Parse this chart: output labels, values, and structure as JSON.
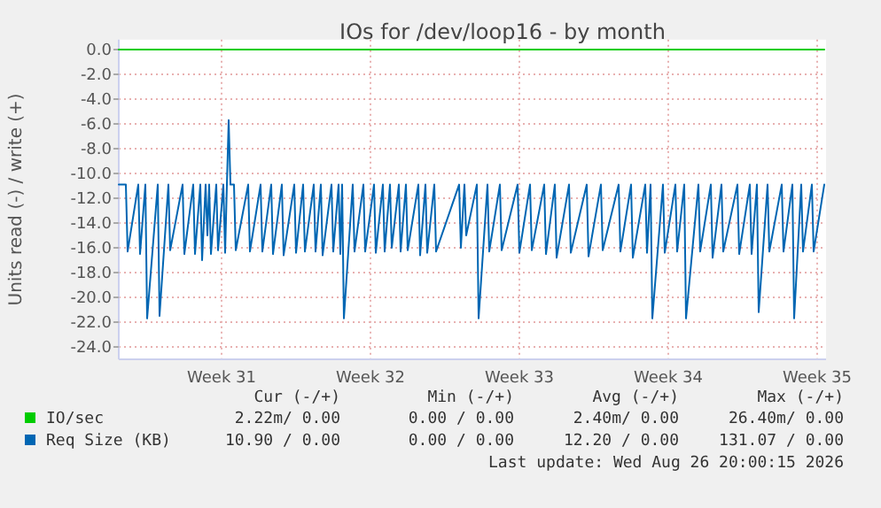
{
  "chart_data": {
    "type": "line",
    "title": "IOs for /dev/loop16 - by month",
    "ylabel": "Units read (-) / write (+)",
    "xlim": [
      "2026-07-22T04:00",
      "2026-08-24T10:00"
    ],
    "ylim": [
      -25,
      0.8
    ],
    "xticks": [
      {
        "value": "2026-07-27",
        "label": "Week 31"
      },
      {
        "value": "2026-08-03",
        "label": "Week 32"
      },
      {
        "value": "2026-08-10",
        "label": "Week 33"
      },
      {
        "value": "2026-08-17",
        "label": "Week 34"
      },
      {
        "value": "2026-08-24",
        "label": "Week 35"
      }
    ],
    "yticks": [
      {
        "value": 0,
        "label": "0.0"
      },
      {
        "value": -2,
        "label": "-2.0"
      },
      {
        "value": -4,
        "label": "-4.0"
      },
      {
        "value": -6,
        "label": "-6.0"
      },
      {
        "value": -8,
        "label": "-8.0"
      },
      {
        "value": -10,
        "label": "-10.0"
      },
      {
        "value": -12,
        "label": "-12.0"
      },
      {
        "value": -14,
        "label": "-14.0"
      },
      {
        "value": -16,
        "label": "-16.0"
      },
      {
        "value": -18,
        "label": "-18.0"
      },
      {
        "value": -20,
        "label": "-20.0"
      },
      {
        "value": -22,
        "label": "-22.0"
      },
      {
        "value": -24,
        "label": "-24.0"
      }
    ],
    "grid": true,
    "legend": "bottom",
    "series": [
      {
        "name": "IO/sec",
        "color": "#00cc00",
        "x": [
          "2026-07-22T04:00",
          "2026-08-24T08:00"
        ],
        "values": [
          0,
          0
        ]
      },
      {
        "name": "Req Size (KB)",
        "color": "#0066b3",
        "x": [
          "2026-07-22T04:00",
          "2026-07-22T12:00",
          "2026-07-22T14:00",
          "2026-07-23T02:00",
          "2026-07-23T04:00",
          "2026-07-23T10:00",
          "2026-07-23T12:00",
          "2026-07-24T00:00",
          "2026-07-24T02:00",
          "2026-07-24T12:00",
          "2026-07-24T14:00",
          "2026-07-25T04:00",
          "2026-07-25T06:00",
          "2026-07-25T16:00",
          "2026-07-25T18:00",
          "2026-07-26T00:00",
          "2026-07-26T02:00",
          "2026-07-26T06:00",
          "2026-07-26T08:00",
          "2026-07-26T10:00",
          "2026-07-26T12:00",
          "2026-07-26T18:00",
          "2026-07-26T20:00",
          "2026-07-27T02:00",
          "2026-07-27T04:00",
          "2026-07-27T06:00",
          "2026-07-27T08:00",
          "2026-07-27T10:00",
          "2026-07-27T14:00",
          "2026-07-27T16:00",
          "2026-07-28T06:00",
          "2026-07-28T08:00",
          "2026-07-28T20:00",
          "2026-07-28T22:00",
          "2026-07-29T08:00",
          "2026-07-29T10:00",
          "2026-07-29T20:00",
          "2026-07-29T22:00",
          "2026-07-30T10:00",
          "2026-07-30T12:00",
          "2026-07-30T20:00",
          "2026-07-30T22:00",
          "2026-07-31T08:00",
          "2026-07-31T10:00",
          "2026-07-31T16:00",
          "2026-07-31T18:00",
          "2026-08-01T04:00",
          "2026-08-01T06:00",
          "2026-08-01T12:00",
          "2026-08-01T14:00",
          "2026-08-01T16:00",
          "2026-08-01T18:00",
          "2026-08-02T04:00",
          "2026-08-02T06:00",
          "2026-08-02T16:00",
          "2026-08-02T18:00",
          "2026-08-03T04:00",
          "2026-08-03T06:00",
          "2026-08-03T14:00",
          "2026-08-03T16:00",
          "2026-08-03T22:00",
          "2026-08-04T00:00",
          "2026-08-04T08:00",
          "2026-08-04T10:00",
          "2026-08-04T16:00",
          "2026-08-04T18:00",
          "2026-08-05T06:00",
          "2026-08-05T08:00",
          "2026-08-05T14:00",
          "2026-08-05T16:00",
          "2026-08-06T00:00",
          "2026-08-06T02:00",
          "2026-08-07T04:00",
          "2026-08-07T06:00",
          "2026-08-07T10:00",
          "2026-08-07T12:00",
          "2026-08-08T00:00",
          "2026-08-08T02:00",
          "2026-08-08T12:00",
          "2026-08-08T14:00",
          "2026-08-09T02:00",
          "2026-08-09T04:00",
          "2026-08-09T22:00",
          "2026-08-10T00:00",
          "2026-08-10T12:00",
          "2026-08-10T14:00",
          "2026-08-11T04:00",
          "2026-08-11T06:00",
          "2026-08-11T16:00",
          "2026-08-11T18:00",
          "2026-08-12T08:00",
          "2026-08-12T10:00",
          "2026-08-13T04:00",
          "2026-08-13T06:00",
          "2026-08-13T20:00",
          "2026-08-13T22:00",
          "2026-08-14T16:00",
          "2026-08-14T18:00",
          "2026-08-15T06:00",
          "2026-08-15T08:00",
          "2026-08-15T22:00",
          "2026-08-16T00:00",
          "2026-08-16T04:00",
          "2026-08-16T06:00",
          "2026-08-16T18:00",
          "2026-08-16T20:00",
          "2026-08-17T08:00",
          "2026-08-17T10:00",
          "2026-08-17T18:00",
          "2026-08-17T20:00",
          "2026-08-18T10:00",
          "2026-08-18T12:00",
          "2026-08-19T00:00",
          "2026-08-19T02:00",
          "2026-08-19T12:00",
          "2026-08-19T14:00",
          "2026-08-20T06:00",
          "2026-08-20T08:00",
          "2026-08-20T20:00",
          "2026-08-20T22:00",
          "2026-08-21T04:00",
          "2026-08-21T06:00",
          "2026-08-21T16:00",
          "2026-08-21T18:00",
          "2026-08-22T08:00",
          "2026-08-22T10:00",
          "2026-08-22T20:00",
          "2026-08-22T22:00",
          "2026-08-23T06:00",
          "2026-08-23T08:00",
          "2026-08-23T18:00",
          "2026-08-23T20:00",
          "2026-08-24T08:00"
        ],
        "values": [
          -10.9,
          -10.9,
          -16.3,
          -10.9,
          -16.5,
          -10.9,
          -21.7,
          -10.9,
          -21.5,
          -10.9,
          -16.2,
          -10.9,
          -16.5,
          -10.9,
          -16.5,
          -10.9,
          -17.0,
          -10.9,
          -15.0,
          -10.9,
          -16.5,
          -10.9,
          -16.2,
          -10.9,
          -16.4,
          -10.9,
          -5.7,
          -10.9,
          -10.9,
          -16.2,
          -10.9,
          -16.3,
          -10.9,
          -16.3,
          -10.9,
          -16.5,
          -10.9,
          -16.6,
          -10.9,
          -16.4,
          -10.9,
          -16.3,
          -10.9,
          -16.3,
          -10.9,
          -16.6,
          -10.9,
          -16.3,
          -10.9,
          -16.5,
          -10.9,
          -21.7,
          -10.9,
          -16.3,
          -10.9,
          -16.3,
          -10.9,
          -16.4,
          -10.9,
          -16.3,
          -10.9,
          -16.0,
          -10.9,
          -16.3,
          -10.9,
          -16.2,
          -10.9,
          -16.6,
          -10.9,
          -16.4,
          -10.9,
          -16.3,
          -10.9,
          -16.0,
          -10.9,
          -15.0,
          -10.9,
          -21.7,
          -10.9,
          -16.3,
          -10.9,
          -16.2,
          -10.9,
          -16.4,
          -10.9,
          -16.2,
          -10.9,
          -16.5,
          -10.9,
          -16.8,
          -10.9,
          -16.4,
          -10.9,
          -16.7,
          -10.9,
          -16.2,
          -10.9,
          -16.3,
          -10.9,
          -16.8,
          -10.9,
          -16.4,
          -10.9,
          -21.7,
          -10.9,
          -16.4,
          -10.9,
          -16.3,
          -10.9,
          -21.7,
          -10.9,
          -16.3,
          -10.9,
          -16.8,
          -10.9,
          -16.3,
          -10.9,
          -16.5,
          -10.9,
          -16.5,
          -10.9,
          -21.2,
          -10.9,
          -16.3,
          -10.9,
          -16.3,
          -10.9,
          -21.7,
          -10.9,
          -16.3,
          -10.9,
          -16.3,
          -10.9
        ]
      }
    ],
    "annotations": [
      "Cur (-/+)",
      "Min (-/+)",
      "Avg (-/+)",
      "Max (-/+)",
      "2.22m/ 0.00",
      "0.00 / 0.00",
      "2.40m/ 0.00",
      "26.40m/ 0.00",
      "10.90 / 0.00",
      "0.00 / 0.00",
      "12.20 / 0.00",
      "131.07 / 0.00",
      "Last update: Wed Aug 26 20:00:15 2026"
    ]
  }
}
